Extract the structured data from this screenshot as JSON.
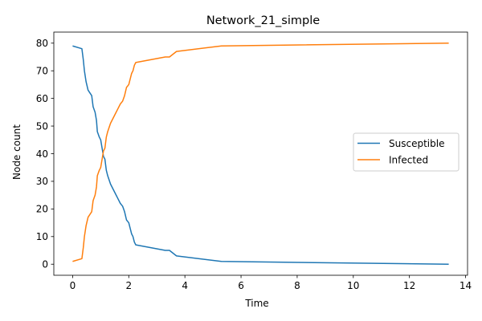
{
  "chart_data": {
    "type": "line",
    "title": "Network_21_simple",
    "xlabel": "Time",
    "ylabel": "Node count",
    "xlim": [
      -0.67,
      14.07
    ],
    "ylim": [
      -4.0,
      84.0
    ],
    "xticks": [
      0,
      2,
      4,
      6,
      8,
      10,
      12,
      14
    ],
    "yticks": [
      0,
      10,
      20,
      30,
      40,
      50,
      60,
      70,
      80
    ],
    "grid": false,
    "legend_position": "center-right",
    "series": [
      {
        "name": "Susceptible",
        "color": "#1f77b4",
        "points": [
          [
            0.0,
            79
          ],
          [
            0.33,
            78
          ],
          [
            0.38,
            74
          ],
          [
            0.42,
            70
          ],
          [
            0.48,
            66
          ],
          [
            0.55,
            63
          ],
          [
            0.68,
            61
          ],
          [
            0.73,
            57
          ],
          [
            0.8,
            55
          ],
          [
            0.85,
            52
          ],
          [
            0.88,
            48
          ],
          [
            0.95,
            46
          ],
          [
            1.0,
            45
          ],
          [
            1.05,
            42
          ],
          [
            1.1,
            39
          ],
          [
            1.15,
            38
          ],
          [
            1.2,
            34
          ],
          [
            1.25,
            32
          ],
          [
            1.35,
            29
          ],
          [
            1.45,
            27
          ],
          [
            1.55,
            25
          ],
          [
            1.6,
            24
          ],
          [
            1.7,
            22
          ],
          [
            1.78,
            21
          ],
          [
            1.85,
            19
          ],
          [
            1.92,
            16
          ],
          [
            2.0,
            15
          ],
          [
            2.05,
            13
          ],
          [
            2.1,
            11
          ],
          [
            2.15,
            10
          ],
          [
            2.2,
            8
          ],
          [
            2.25,
            7
          ],
          [
            3.3,
            5
          ],
          [
            3.45,
            5
          ],
          [
            3.7,
            3
          ],
          [
            5.3,
            1
          ],
          [
            13.4,
            0
          ]
        ]
      },
      {
        "name": "Infected",
        "color": "#ff7f0e",
        "points": [
          [
            0.0,
            1
          ],
          [
            0.33,
            2
          ],
          [
            0.38,
            6
          ],
          [
            0.42,
            10
          ],
          [
            0.48,
            14
          ],
          [
            0.55,
            17
          ],
          [
            0.68,
            19
          ],
          [
            0.73,
            23
          ],
          [
            0.8,
            25
          ],
          [
            0.85,
            28
          ],
          [
            0.88,
            32
          ],
          [
            0.95,
            34
          ],
          [
            1.0,
            35
          ],
          [
            1.05,
            38
          ],
          [
            1.1,
            41
          ],
          [
            1.15,
            42
          ],
          [
            1.2,
            46
          ],
          [
            1.25,
            48
          ],
          [
            1.35,
            51
          ],
          [
            1.45,
            53
          ],
          [
            1.55,
            55
          ],
          [
            1.6,
            56
          ],
          [
            1.7,
            58
          ],
          [
            1.78,
            59
          ],
          [
            1.85,
            61
          ],
          [
            1.92,
            64
          ],
          [
            2.0,
            65
          ],
          [
            2.05,
            67
          ],
          [
            2.1,
            69
          ],
          [
            2.15,
            70
          ],
          [
            2.2,
            72
          ],
          [
            2.25,
            73
          ],
          [
            3.3,
            75
          ],
          [
            3.45,
            75
          ],
          [
            3.7,
            77
          ],
          [
            5.3,
            79
          ],
          [
            13.4,
            80
          ]
        ]
      }
    ]
  }
}
